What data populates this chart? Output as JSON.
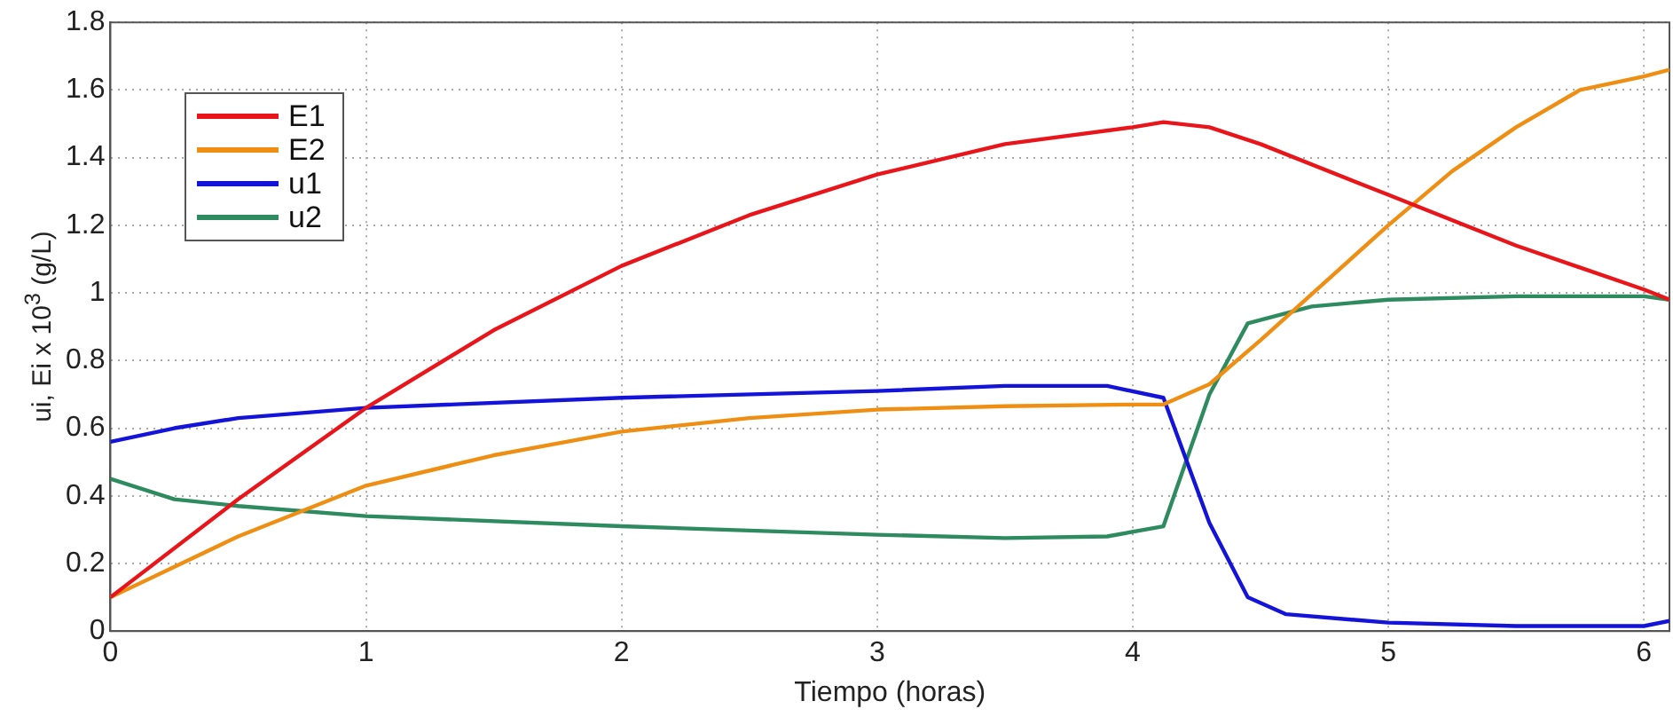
{
  "chart_data": {
    "type": "line",
    "xlabel": "Tiempo (horas)",
    "ylabel": "ui, Ei x 10$^{3}$ (g/L)",
    "xlim": [
      0,
      6.1
    ],
    "xticks": [
      0,
      1,
      2,
      3,
      4,
      5,
      6
    ],
    "ylim": [
      0,
      1.8
    ],
    "yticks": [
      0,
      0.2,
      0.4,
      0.6,
      0.8,
      1,
      1.2,
      1.4,
      1.6,
      1.8
    ],
    "grid": true,
    "legend": "top left",
    "marker": "none",
    "line_style": "solid",
    "series": [
      {
        "name": "E1",
        "color": "#e8161b",
        "x": [
          0,
          0.5,
          1,
          1.5,
          2,
          2.5,
          3,
          3.5,
          4,
          4.12,
          4.3,
          4.5,
          5,
          5.5,
          6,
          6.1
        ],
        "values": [
          0.1,
          0.39,
          0.66,
          0.89,
          1.08,
          1.23,
          1.35,
          1.44,
          1.49,
          1.505,
          1.49,
          1.44,
          1.29,
          1.14,
          1.01,
          0.98
        ]
      },
      {
        "name": "E2",
        "color": "#ee8f13",
        "x": [
          0,
          0.5,
          1,
          1.5,
          2,
          2.5,
          3,
          3.5,
          4,
          4.12,
          4.3,
          4.5,
          4.75,
          5,
          5.25,
          5.5,
          5.75,
          6,
          6.1
        ],
        "values": [
          0.1,
          0.28,
          0.43,
          0.52,
          0.59,
          0.63,
          0.655,
          0.665,
          0.67,
          0.67,
          0.73,
          0.86,
          1.03,
          1.2,
          1.36,
          1.49,
          1.6,
          1.64,
          1.66
        ]
      },
      {
        "name": "u1",
        "color": "#1414d8",
        "x": [
          0,
          0.25,
          0.5,
          1,
          2,
          3,
          3.5,
          3.9,
          4.12,
          4.3,
          4.45,
          4.6,
          5,
          5.5,
          6,
          6.1
        ],
        "values": [
          0.56,
          0.6,
          0.63,
          0.66,
          0.69,
          0.71,
          0.725,
          0.725,
          0.69,
          0.32,
          0.1,
          0.05,
          0.025,
          0.015,
          0.015,
          0.03
        ]
      },
      {
        "name": "u2",
        "color": "#2e8b5f",
        "x": [
          0,
          0.25,
          0.5,
          1,
          2,
          3,
          3.5,
          3.9,
          4.12,
          4.3,
          4.45,
          4.7,
          5,
          5.5,
          6,
          6.1
        ],
        "values": [
          0.45,
          0.39,
          0.37,
          0.34,
          0.31,
          0.285,
          0.275,
          0.28,
          0.31,
          0.7,
          0.91,
          0.96,
          0.98,
          0.99,
          0.99,
          0.98
        ]
      }
    ]
  }
}
